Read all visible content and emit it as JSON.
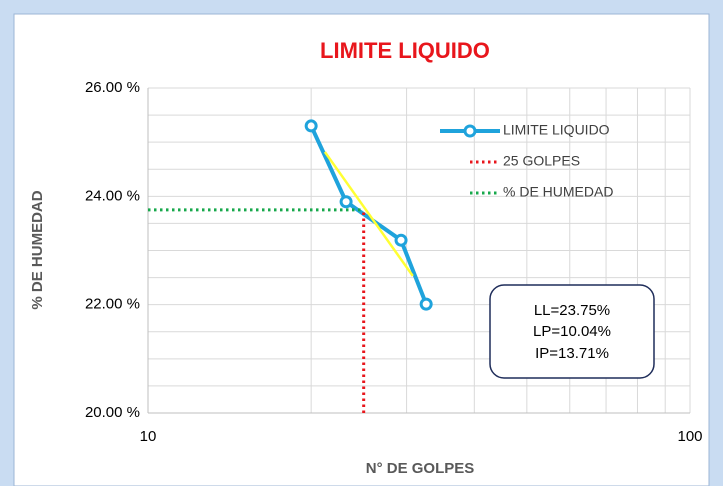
{
  "chart_data": {
    "type": "line",
    "title": "LIMITE LIQUIDO",
    "xlabel": "N° DE GOLPES",
    "ylabel": "% DE HUMEDAD",
    "xscale": "log",
    "xlim": [
      10,
      100
    ],
    "xticks": [
      10,
      100
    ],
    "xminorticks": [
      20,
      30,
      40,
      50,
      60,
      70,
      80,
      90
    ],
    "ylim": [
      20,
      26
    ],
    "yticks": [
      {
        "value": 20,
        "label": "20.00 %"
      },
      {
        "value": 22,
        "label": "22.00 %"
      },
      {
        "value": 24,
        "label": "24.00 %"
      },
      {
        "value": 26,
        "label": "26.00 %"
      }
    ],
    "yminorticks": [
      20.5,
      21,
      21.5,
      22.5,
      23,
      23.5,
      24.5,
      25,
      25.5
    ],
    "grid": true,
    "legend": "upper right",
    "series": [
      {
        "name": "LIMITE LIQUIDO",
        "color": "#1fa3dc",
        "style": "solid-markers",
        "x": [
          20,
          23.2,
          29.3,
          32.6
        ],
        "values": [
          25.3,
          23.9,
          23.19,
          22.01
        ]
      },
      {
        "name": "25 GOLPES",
        "color": "#e8161c",
        "style": "dotted",
        "x": [
          25,
          25
        ],
        "values": [
          20,
          23.75
        ]
      },
      {
        "name": "% DE HUMEDAD",
        "color": "#17a84b",
        "style": "dotted",
        "x": [
          10,
          25
        ],
        "values": [
          23.75,
          23.75
        ]
      }
    ],
    "trendline": {
      "color": "#ffff33",
      "x": [
        21.2,
        30.8
      ],
      "values": [
        24.82,
        22.53
      ]
    },
    "annotations": [
      "LL=23.75%",
      "LP=10.04%",
      "IP=13.71%"
    ]
  }
}
